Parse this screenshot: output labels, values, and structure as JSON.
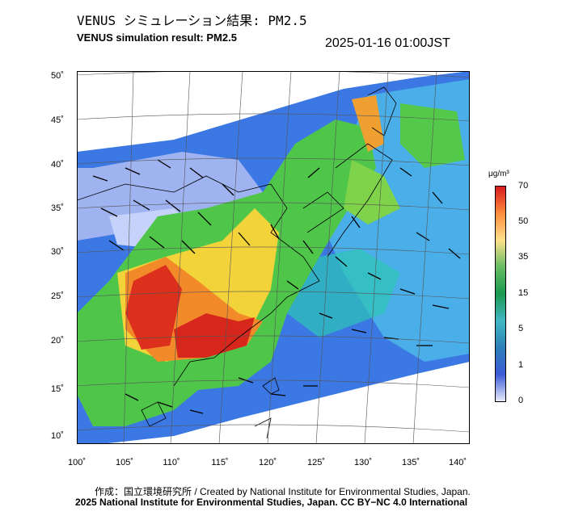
{
  "title_ja": "VENUS シミュレーション結果: PM2.5",
  "title_en": "VENUS simulation result: PM2.5",
  "datetime": "2025-01-16 01:00JST",
  "lat_labels": [
    "50˚",
    "45˚",
    "40˚",
    "35˚",
    "30˚",
    "25˚",
    "20˚",
    "15˚",
    "10˚"
  ],
  "lon_labels": [
    "100˚",
    "105˚",
    "110˚",
    "115˚",
    "120˚",
    "125˚",
    "130˚",
    "135˚",
    "140˚"
  ],
  "colorbar": {
    "unit": "μg/m³",
    "labels": [
      "70",
      "50",
      "35",
      "15",
      "5",
      "1",
      "0"
    ],
    "colors": [
      "#d7191c",
      "#fd8d3c",
      "#fee08b",
      "#66bd63",
      "#1a9850",
      "#41b6c4",
      "#2c7fb8",
      "#3b5bd6",
      "#e8eafc"
    ]
  },
  "credit_1": "作成：国立環境研究所 / Created by National Institute for Environmental Studies, Japan.",
  "credit_2": "2025 National Institute for Environmental Studies, Japan. CC BY−NC 4.0 International"
}
